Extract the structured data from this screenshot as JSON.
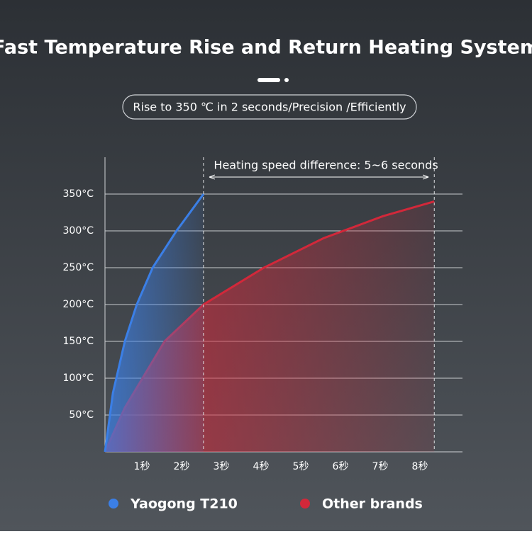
{
  "chart_data": {
    "type": "line",
    "title": "Fast Temperature Rise and Return Heating System",
    "subtitle": "Rise to 350 ℃ in 2 seconds/Precision /Efficiently",
    "annotation": "Heating speed difference: 5~6 seconds",
    "xlim": [
      0,
      9
    ],
    "xticks": [
      {
        "value": 1,
        "label": "1秒"
      },
      {
        "value": 2,
        "label": "2秒"
      },
      {
        "value": 3,
        "label": "3秒"
      },
      {
        "value": 4,
        "label": "4秒"
      },
      {
        "value": 5,
        "label": "5秒"
      },
      {
        "value": 6,
        "label": "6秒"
      },
      {
        "value": 7,
        "label": "7秒"
      },
      {
        "value": 8,
        "label": "8秒"
      }
    ],
    "ylim": [
      0,
      400
    ],
    "yticks": [
      {
        "value": 50,
        "label": "50°C"
      },
      {
        "value": 100,
        "label": "100°C"
      },
      {
        "value": 150,
        "label": "150°C"
      },
      {
        "value": 200,
        "label": "200°C"
      },
      {
        "value": 250,
        "label": "250°C"
      },
      {
        "value": 300,
        "label": "300°C"
      },
      {
        "value": 350,
        "label": "350°C"
      }
    ],
    "grid": true,
    "series": [
      {
        "name": "Yaogong T210",
        "color": "#3b7fe6",
        "x": [
          0,
          0.2,
          0.5,
          0.8,
          1.2,
          1.8,
          2.48
        ],
        "values": [
          0,
          80,
          150,
          200,
          250,
          300,
          350
        ]
      },
      {
        "name": "Other brands",
        "color": "#d2283a",
        "x": [
          0,
          0.5,
          1,
          1.5,
          2.48,
          4,
          5.5,
          7,
          8.29
        ],
        "values": [
          0,
          60,
          105,
          150,
          200,
          250,
          290,
          320,
          340
        ]
      }
    ]
  }
}
